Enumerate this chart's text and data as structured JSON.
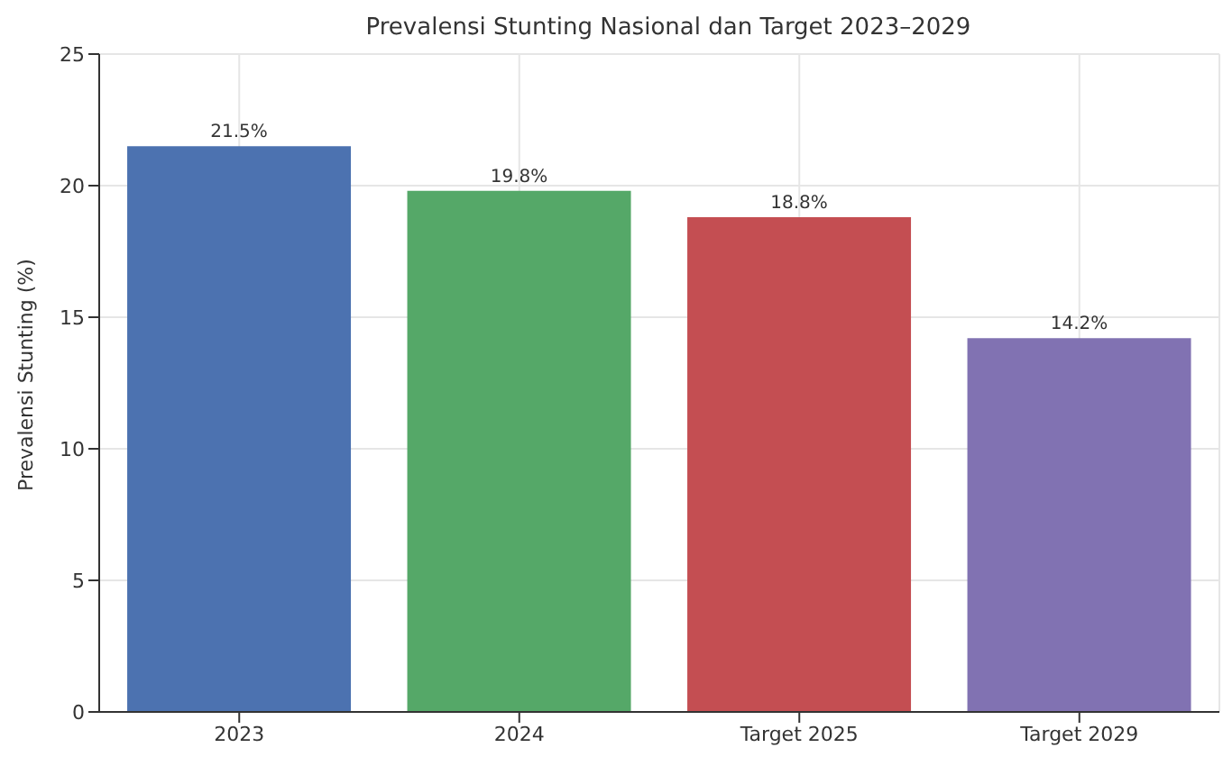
{
  "chart_data": {
    "type": "bar",
    "title": "Prevalensi Stunting Nasional dan Target 2023–2029",
    "ylabel": "Prevalensi Stunting (%)",
    "categories": [
      "2023",
      "2024",
      "Target 2025",
      "Target 2029"
    ],
    "values": [
      21.5,
      19.8,
      18.8,
      14.2
    ],
    "colors": [
      "#4c72b0",
      "#55a868",
      "#c44e52",
      "#8172b2"
    ],
    "value_labels": [
      "21.5%",
      "19.8%",
      "18.8%",
      "14.2%"
    ],
    "ylim": [
      0,
      25
    ],
    "yticks": [
      0,
      5,
      10,
      15,
      20,
      25
    ],
    "grid": true
  }
}
